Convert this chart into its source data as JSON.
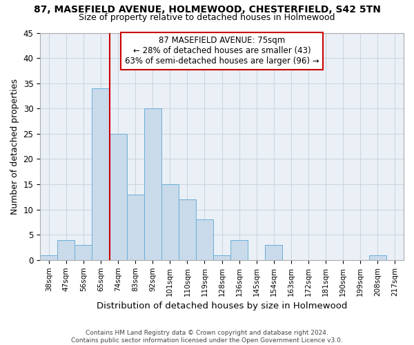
{
  "title_line1": "87, MASEFIELD AVENUE, HOLMEWOOD, CHESTERFIELD, S42 5TN",
  "title_line2": "Size of property relative to detached houses in Holmewood",
  "xlabel": "Distribution of detached houses by size in Holmewood",
  "ylabel": "Number of detached properties",
  "footer_line1": "Contains HM Land Registry data © Crown copyright and database right 2024.",
  "footer_line2": "Contains public sector information licensed under the Open Government Licence v3.0.",
  "bar_labels": [
    "38sqm",
    "47sqm",
    "56sqm",
    "65sqm",
    "74sqm",
    "83sqm",
    "92sqm",
    "101sqm",
    "110sqm",
    "119sqm",
    "128sqm",
    "136sqm",
    "145sqm",
    "154sqm",
    "163sqm",
    "172sqm",
    "181sqm",
    "190sqm",
    "199sqm",
    "208sqm",
    "217sqm"
  ],
  "bar_values": [
    1,
    4,
    3,
    34,
    25,
    13,
    30,
    15,
    12,
    8,
    1,
    4,
    0,
    3,
    0,
    0,
    0,
    0,
    0,
    1,
    0
  ],
  "bar_color": "#c9daea",
  "bar_edge_color": "#6aaed6",
  "grid_color": "#ccd6e0",
  "background_color": "#eaf0f6",
  "annotation_line1": "87 MASEFIELD AVENUE: 75sqm",
  "annotation_line2": "← 28% of detached houses are smaller (43)",
  "annotation_line3": "63% of semi-detached houses are larger (96) →",
  "vline_color": "#cc0000",
  "box_color": "#cc0000",
  "ylim": [
    0,
    45
  ],
  "yticks": [
    0,
    5,
    10,
    15,
    20,
    25,
    30,
    35,
    40,
    45
  ]
}
